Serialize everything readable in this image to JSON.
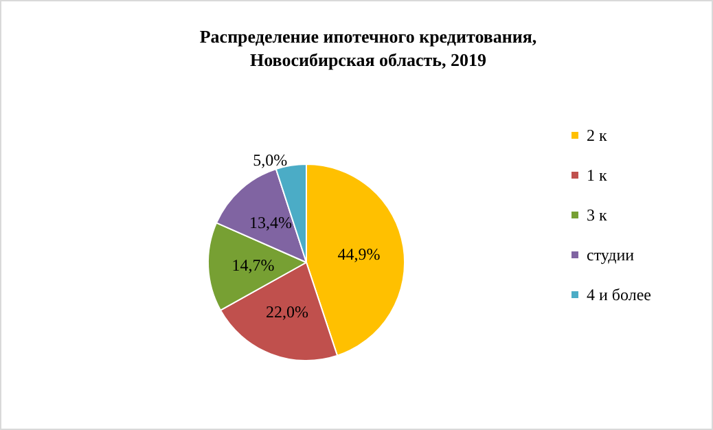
{
  "chart_data": {
    "type": "pie",
    "title": "Распределение ипотечного кредитования,\nНовосибирская область, 2019",
    "categories": [
      "2 к",
      "1 к",
      "3 к",
      "студии",
      "4 и более"
    ],
    "values": [
      44.9,
      22.0,
      14.7,
      13.4,
      5.0
    ],
    "value_labels": [
      "44,9%",
      "22,0%",
      "14,7%",
      "13,4%",
      "5,0%"
    ],
    "colors": [
      "#ffc000",
      "#c0504d",
      "#77a033",
      "#8064a2",
      "#4bacc6"
    ],
    "legend": "right"
  }
}
